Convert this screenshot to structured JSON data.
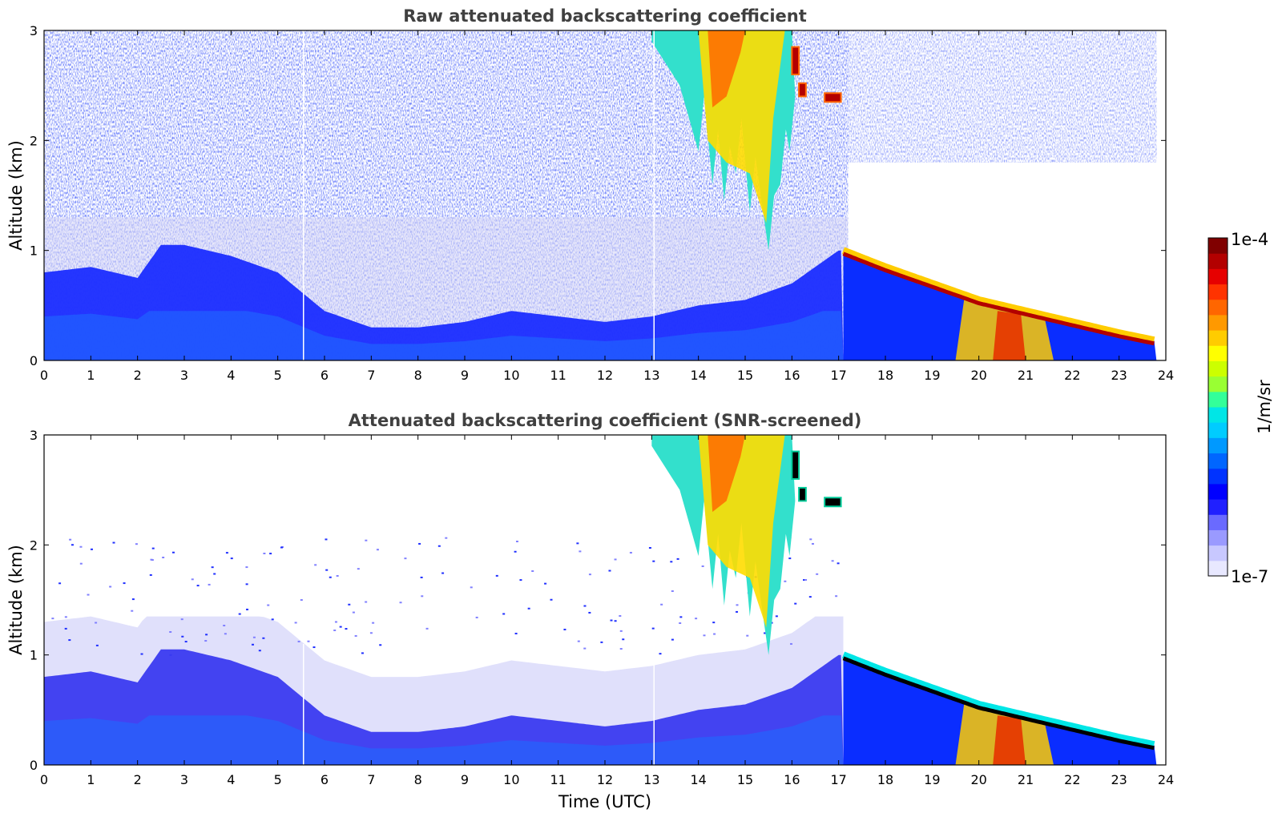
{
  "chart_data": [
    {
      "type": "heatmap",
      "title": "Raw attenuated backscattering coefficient",
      "xlabel": "",
      "ylabel": "Altitude (km)",
      "xlim": [
        0,
        24
      ],
      "ylim": [
        0,
        3
      ],
      "x_ticks": [
        "0",
        "1",
        "2",
        "3",
        "4",
        "5",
        "6",
        "7",
        "8",
        "9",
        "10",
        "11",
        "12",
        "13",
        "14",
        "15",
        "16",
        "17",
        "18",
        "19",
        "20",
        "21",
        "22",
        "23",
        "24"
      ],
      "y_ticks": [
        "0",
        "1",
        "2",
        "3"
      ],
      "features": {
        "boundary_layer_top_km": [
          [
            0,
            0.8
          ],
          [
            1,
            0.85
          ],
          [
            2,
            0.75
          ],
          [
            2.5,
            1.05
          ],
          [
            3,
            1.05
          ],
          [
            4,
            0.95
          ],
          [
            5,
            0.8
          ],
          [
            6,
            0.45
          ],
          [
            7,
            0.3
          ],
          [
            8,
            0.3
          ],
          [
            9,
            0.35
          ],
          [
            10,
            0.45
          ],
          [
            11,
            0.4
          ],
          [
            12,
            0.35
          ],
          [
            13,
            0.4
          ],
          [
            14,
            0.5
          ],
          [
            15,
            0.55
          ],
          [
            16,
            0.7
          ],
          [
            17,
            1.0
          ]
        ],
        "descending_layer_km": [
          [
            17.1,
            1.0
          ],
          [
            18,
            0.85
          ],
          [
            19,
            0.7
          ],
          [
            20,
            0.55
          ],
          [
            21,
            0.45
          ],
          [
            22,
            0.35
          ],
          [
            23,
            0.25
          ],
          [
            23.8,
            0.18
          ]
        ],
        "cloud_virga": {
          "x_start": 13.0,
          "x_end": 16.0,
          "top_km": 3.0,
          "min_base_km": 1.0,
          "base_at_x": 15.5
        },
        "noise_region_above_km": 1.0,
        "clear_region_after_x": 17.2,
        "gaps_x": [
          5.55,
          13.05
        ]
      }
    },
    {
      "type": "heatmap",
      "title": "Attenuated backscattering coefficient (SNR-screened)",
      "xlabel": "Time (UTC)",
      "ylabel": "Altitude (km)",
      "xlim": [
        0,
        24
      ],
      "ylim": [
        0,
        3
      ],
      "x_ticks": [
        "0",
        "1",
        "2",
        "3",
        "4",
        "5",
        "6",
        "7",
        "8",
        "9",
        "10",
        "11",
        "12",
        "13",
        "14",
        "15",
        "16",
        "17",
        "18",
        "19",
        "20",
        "21",
        "22",
        "23",
        "24"
      ],
      "y_ticks": [
        "0",
        "1",
        "2",
        "3"
      ],
      "features": {
        "screened": true,
        "screen_above_km": 1.35
      }
    }
  ],
  "colorbar": {
    "label": "1/m/sr",
    "max_label": "1e-4",
    "min_label": "1e-7",
    "colors": [
      "#e8e8ff",
      "#c8c8ff",
      "#9a9aff",
      "#6a6aff",
      "#2020ff",
      "#0000ff",
      "#0033ff",
      "#0066ff",
      "#0099ff",
      "#00ccff",
      "#00e6e6",
      "#33ff99",
      "#99ff33",
      "#ccff00",
      "#ffff00",
      "#ffcc00",
      "#ff9900",
      "#ff6600",
      "#ff3300",
      "#e60000",
      "#b30000",
      "#800000"
    ]
  }
}
